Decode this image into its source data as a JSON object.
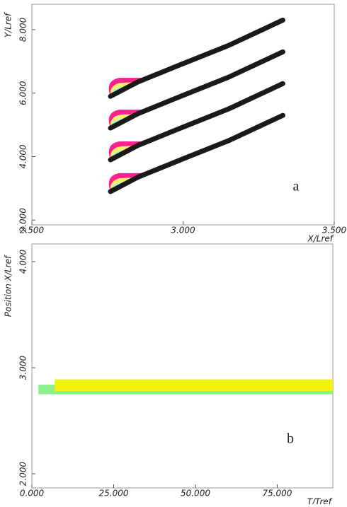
{
  "chart_data": [
    {
      "type": "blades",
      "panel_label": "a",
      "x_label": "X/Lref",
      "y_label": "Y/Lref",
      "xlim": [
        2.5,
        3.5
      ],
      "ylim": [
        1.85,
        8.8
      ],
      "xticks": [
        {
          "value": 2.5,
          "label": "2.500"
        },
        {
          "value": 3.0,
          "label": "3.000"
        },
        {
          "value": 3.5,
          "label": "3.500"
        }
      ],
      "yticks": [
        {
          "value": 2,
          "label": "2.000"
        },
        {
          "value": 4,
          "label": "4.000"
        },
        {
          "value": 6,
          "label": "6.000"
        },
        {
          "value": 8,
          "label": "8.000"
        }
      ],
      "color": "#1a1a1a",
      "series": [
        {
          "x": [
            2.76,
            2.85,
            3.0,
            3.15,
            3.33
          ],
          "values": [
            5.9,
            6.35,
            6.93,
            7.5,
            8.3
          ]
        },
        {
          "x": [
            2.76,
            2.85,
            3.0,
            3.15,
            3.33
          ],
          "values": [
            4.9,
            5.35,
            5.93,
            6.5,
            7.3
          ]
        },
        {
          "x": [
            2.76,
            2.85,
            3.0,
            3.15,
            3.33
          ],
          "values": [
            3.9,
            4.35,
            4.93,
            5.5,
            6.3
          ]
        },
        {
          "x": [
            2.76,
            2.85,
            3.0,
            3.15,
            3.33
          ],
          "values": [
            2.9,
            3.35,
            3.93,
            4.5,
            5.3
          ]
        }
      ]
    },
    {
      "type": "bands",
      "panel_label": "b",
      "x_label": "T/Tref",
      "y_label": "Position X/Lref",
      "xlim": [
        0,
        92
      ],
      "ylim": [
        1.867,
        4.167
      ],
      "xticks": [
        {
          "value": 0,
          "label": "0.000"
        },
        {
          "value": 25,
          "label": "25.000"
        },
        {
          "value": 50,
          "label": "50.000"
        },
        {
          "value": 75,
          "label": "75.000"
        }
      ],
      "yticks": [
        {
          "value": 2,
          "label": "2.000"
        },
        {
          "value": 3,
          "label": "3.000"
        },
        {
          "value": 4,
          "label": "4.000"
        }
      ],
      "series": [
        {
          "color": "#8ef08a",
          "x": [
            2,
            92
          ],
          "values": [
            2.75,
            2.84
          ]
        },
        {
          "color": "#f2f20a",
          "x": [
            7,
            92
          ],
          "values": [
            2.78,
            2.89
          ]
        }
      ]
    }
  ]
}
